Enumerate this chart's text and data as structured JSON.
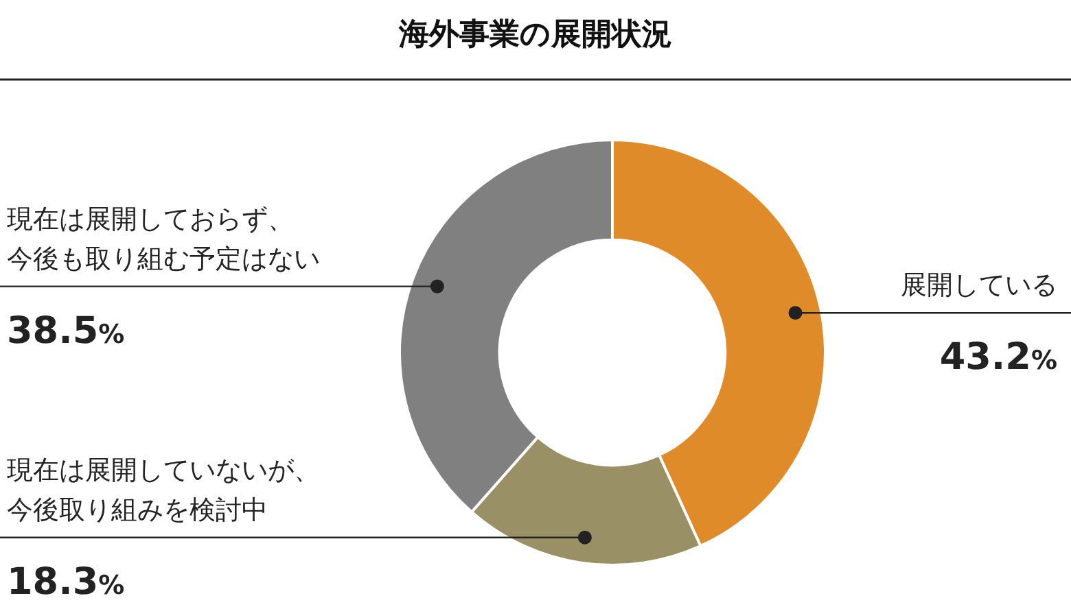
{
  "chart_data": {
    "type": "donut",
    "title": "海外事業の展開状況",
    "categories": [
      "展開している",
      "現在は展開していないが、今後取り組みを検討中",
      "現在は展開しておらず、今後も取り組む予定はない"
    ],
    "values": [
      43.2,
      18.3,
      38.5
    ],
    "colors": [
      "#e08b2a",
      "#9a9066",
      "#808080"
    ],
    "value_labels": [
      "43.2%",
      "18.3%",
      "38.5%"
    ],
    "legend": false
  }
}
